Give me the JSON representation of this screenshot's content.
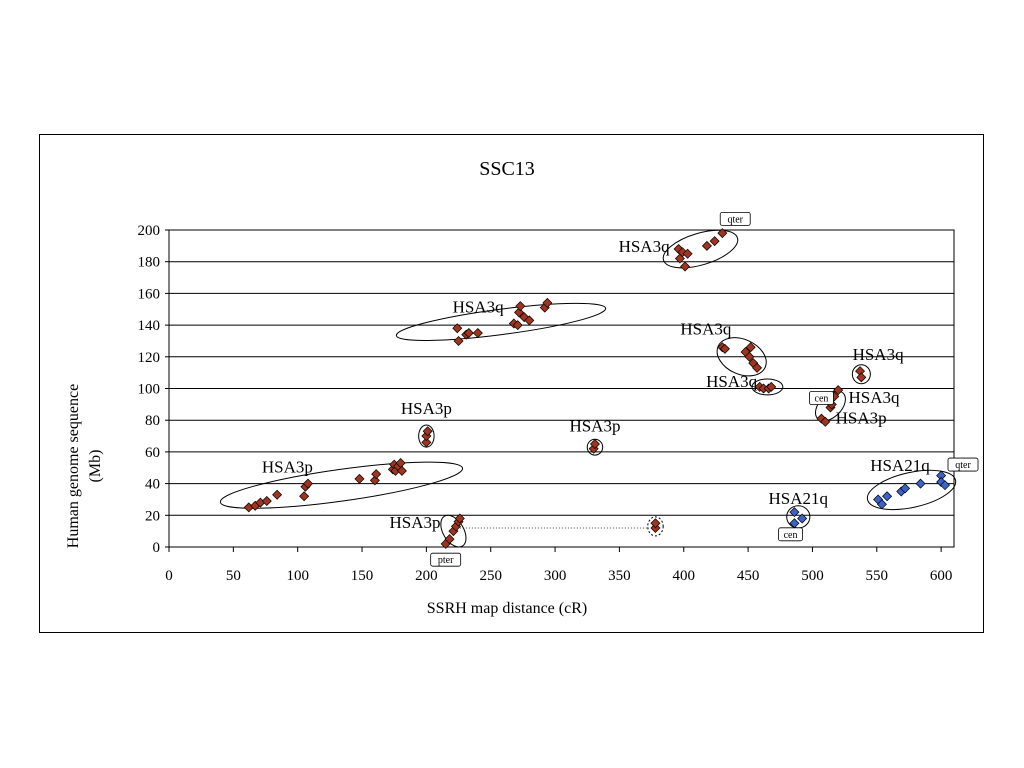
{
  "chart_data": {
    "type": "scatter",
    "title": "SSC13",
    "xlabel": "SSRH map distance (cR)",
    "ylabel_lines": [
      "Human genome sequence",
      "(Mb)"
    ],
    "xlim": [
      0,
      610
    ],
    "ylim": [
      0,
      200
    ],
    "x_ticks": [
      0,
      50,
      100,
      150,
      200,
      250,
      300,
      350,
      400,
      450,
      500,
      550,
      600
    ],
    "y_ticks": [
      0,
      20,
      40,
      60,
      80,
      100,
      120,
      140,
      160,
      180,
      200
    ],
    "grid": "horizontal",
    "colors": {
      "hsa3": "#a0341c",
      "hsa21": "#3a62c8"
    },
    "series": [
      {
        "color_key": "hsa3",
        "points": [
          [
            62,
            25
          ],
          [
            67,
            26
          ],
          [
            71,
            28
          ],
          [
            76,
            29
          ],
          [
            84,
            33
          ],
          [
            105,
            32
          ],
          [
            106,
            38
          ],
          [
            108,
            40
          ],
          [
            148,
            43
          ],
          [
            160,
            42
          ],
          [
            161,
            46
          ],
          [
            174,
            49
          ],
          [
            175,
            52
          ],
          [
            176,
            48
          ],
          [
            178,
            51
          ],
          [
            180,
            53
          ],
          [
            181,
            48
          ],
          [
            200,
            66
          ],
          [
            200,
            70
          ],
          [
            201,
            73
          ],
          [
            215,
            2
          ],
          [
            218,
            5
          ],
          [
            221,
            10
          ],
          [
            223,
            13
          ],
          [
            225,
            16
          ],
          [
            226,
            18
          ],
          [
            224,
            138
          ],
          [
            225,
            130
          ],
          [
            231,
            134
          ],
          [
            233,
            135
          ],
          [
            240,
            135
          ],
          [
            268,
            141
          ],
          [
            271,
            140
          ],
          [
            272,
            148
          ],
          [
            273,
            152
          ],
          [
            276,
            145
          ],
          [
            280,
            143
          ],
          [
            292,
            151
          ],
          [
            294,
            154
          ],
          [
            330,
            62
          ],
          [
            331,
            65
          ],
          [
            378,
            12
          ],
          [
            378,
            15
          ],
          [
            396,
            188
          ],
          [
            397,
            182
          ],
          [
            399,
            186
          ],
          [
            401,
            177
          ],
          [
            403,
            185
          ],
          [
            418,
            190
          ],
          [
            424,
            193
          ],
          [
            430,
            198
          ],
          [
            430,
            126
          ],
          [
            432,
            125
          ],
          [
            448,
            123
          ],
          [
            451,
            120
          ],
          [
            452,
            126
          ],
          [
            454,
            116
          ],
          [
            457,
            113
          ],
          [
            459,
            101
          ],
          [
            462,
            100
          ],
          [
            466,
            100
          ],
          [
            468,
            101
          ],
          [
            507,
            81
          ],
          [
            510,
            79
          ],
          [
            514,
            88
          ],
          [
            515,
            90
          ],
          [
            517,
            95
          ],
          [
            520,
            99
          ],
          [
            537,
            111
          ],
          [
            538,
            107
          ]
        ]
      },
      {
        "color_key": "hsa21",
        "points": [
          [
            486,
            22
          ],
          [
            486,
            15
          ],
          [
            492,
            18
          ],
          [
            551,
            30
          ],
          [
            554,
            27
          ],
          [
            558,
            32
          ],
          [
            569,
            35
          ],
          [
            572,
            37
          ],
          [
            584,
            40
          ],
          [
            600,
            45
          ],
          [
            600,
            41
          ],
          [
            603,
            39
          ]
        ]
      }
    ],
    "ellipses": [
      {
        "cx": 134,
        "cy": 39,
        "rx": 95,
        "ry": 10,
        "angle": 0.14,
        "dashed": false
      },
      {
        "cx": 200,
        "cy": 70,
        "rx": 6,
        "ry": 7,
        "angle": 0,
        "dashed": false
      },
      {
        "cx": 221,
        "cy": 10,
        "rx": 8,
        "ry": 11,
        "angle": 0.6,
        "dashed": false
      },
      {
        "cx": 258,
        "cy": 142,
        "rx": 82,
        "ry": 8,
        "angle": 0.13,
        "dashed": false
      },
      {
        "cx": 331,
        "cy": 63,
        "rx": 6,
        "ry": 5,
        "angle": 0,
        "dashed": false
      },
      {
        "cx": 378,
        "cy": 13,
        "rx": 6,
        "ry": 6,
        "angle": 0,
        "dashed": true
      },
      {
        "cx": 413,
        "cy": 188,
        "rx": 30,
        "ry": 10,
        "angle": 0.3,
        "dashed": false
      },
      {
        "cx": 445,
        "cy": 120,
        "rx": 20,
        "ry": 11,
        "angle": -0.45,
        "dashed": false
      },
      {
        "cx": 465,
        "cy": 101,
        "rx": 12,
        "ry": 5,
        "angle": 0,
        "dashed": false
      },
      {
        "cx": 514,
        "cy": 89,
        "rx": 14,
        "ry": 7,
        "angle": 1.0,
        "dashed": false
      },
      {
        "cx": 538,
        "cy": 109,
        "rx": 7,
        "ry": 6,
        "angle": 0,
        "dashed": false
      },
      {
        "cx": 489,
        "cy": 19,
        "rx": 9,
        "ry": 7,
        "angle": 0,
        "dashed": false
      },
      {
        "cx": 577,
        "cy": 36,
        "rx": 35,
        "ry": 11,
        "angle": 0.22,
        "dashed": false
      }
    ],
    "connector": {
      "from": [
        226,
        12
      ],
      "to": [
        373,
        12
      ]
    },
    "annotations": [
      {
        "text": "HSA3p",
        "x": 92,
        "y": 47,
        "anchor": "middle"
      },
      {
        "text": "HSA3p",
        "x": 200,
        "y": 84,
        "anchor": "middle"
      },
      {
        "text": "HSA3p",
        "x": 211,
        "y": 12,
        "anchor": "end"
      },
      {
        "text": "HSA3q",
        "x": 260,
        "y": 148,
        "anchor": "end"
      },
      {
        "text": "HSA3p",
        "x": 331,
        "y": 73,
        "anchor": "middle"
      },
      {
        "text": "HSA3q",
        "x": 389,
        "y": 186,
        "anchor": "end"
      },
      {
        "text": "HSA3q",
        "x": 437,
        "y": 134,
        "anchor": "end"
      },
      {
        "text": "HSA3q",
        "x": 457,
        "y": 101,
        "anchor": "end"
      },
      {
        "text": "HSA3q",
        "x": 551,
        "y": 118,
        "anchor": "middle"
      },
      {
        "text": "HSA3q",
        "x": 528,
        "y": 91,
        "anchor": "start"
      },
      {
        "text": "HSA3p",
        "x": 518,
        "y": 78,
        "anchor": "start"
      },
      {
        "text": "HSA21q",
        "x": 489,
        "y": 27,
        "anchor": "middle"
      },
      {
        "text": "HSA21q",
        "x": 568,
        "y": 48,
        "anchor": "middle"
      }
    ],
    "tags": [
      {
        "text": "qter",
        "x": 440,
        "y": 207
      },
      {
        "text": "pter",
        "x": 215,
        "y": -8
      },
      {
        "text": "cen",
        "x": 507,
        "y": 94
      },
      {
        "text": "cen",
        "x": 483,
        "y": 8
      },
      {
        "text": "qter",
        "x": 617,
        "y": 52
      }
    ]
  }
}
